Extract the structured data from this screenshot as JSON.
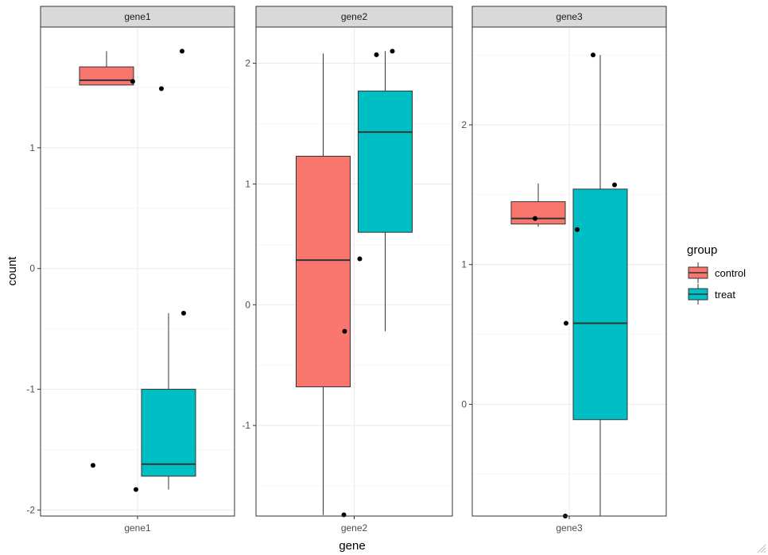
{
  "chart_data": {
    "type": "boxplot",
    "xlabel": "gene",
    "ylabel": "count",
    "facet_scales": "free_y",
    "grid": true,
    "legend": {
      "title": "group",
      "placement": "right",
      "entries": [
        {
          "name": "control",
          "color": "#F8766D"
        },
        {
          "name": "treat",
          "color": "#00BFC4"
        }
      ]
    },
    "panels": [
      {
        "title": "gene1",
        "category": "gene1",
        "ylim": [
          -2.05,
          2.0
        ],
        "yticks": [
          -2,
          -1,
          0,
          1
        ],
        "groups": [
          {
            "name": "control",
            "box": {
              "lower": 1.52,
              "q1": 1.52,
              "median": 1.56,
              "q3": 1.67,
              "upper": 1.8
            },
            "points": [
              {
                "dx": -0.06,
                "y": 1.55
              },
              {
                "dx": 0.3,
                "y": 1.49
              },
              {
                "dx": 0.56,
                "y": 1.8
              }
            ]
          },
          {
            "name": "treat",
            "box": {
              "lower": -1.83,
              "q1": -1.72,
              "median": -1.62,
              "q3": -1.0,
              "upper": -0.37
            },
            "points": [
              {
                "dx": -0.56,
                "y": -1.63
              },
              {
                "dx": -0.02,
                "y": -1.83
              },
              {
                "dx": 0.58,
                "y": -0.37
              }
            ]
          }
        ]
      },
      {
        "title": "gene2",
        "category": "gene2",
        "ylim": [
          -1.75,
          2.3
        ],
        "yticks": [
          -1,
          0,
          1,
          2
        ],
        "groups": [
          {
            "name": "control",
            "box": {
              "lower": -1.74,
              "q1": -0.68,
              "median": 0.37,
              "q3": 1.23,
              "upper": 2.08
            },
            "points": [
              {
                "dx": -0.12,
                "y": -0.22
              },
              {
                "dx": 0.28,
                "y": 2.07
              },
              {
                "dx": 0.48,
                "y": 2.1
              },
              {
                "dx": -0.13,
                "y": -1.74
              },
              {
                "dx": 0.07,
                "y": 0.38
              }
            ]
          },
          {
            "name": "treat",
            "box": {
              "lower": -0.22,
              "q1": 0.6,
              "median": 1.43,
              "q3": 1.77,
              "upper": 2.1
            },
            "points": []
          }
        ]
      },
      {
        "title": "gene3",
        "category": "gene3",
        "ylim": [
          -0.8,
          2.7
        ],
        "yticks": [
          0,
          1,
          2
        ],
        "groups": [
          {
            "name": "control",
            "box": {
              "lower": 1.27,
              "q1": 1.29,
              "median": 1.33,
              "q3": 1.45,
              "upper": 1.58
            },
            "points": [
              {
                "dx": -0.04,
                "y": 0.58
              },
              {
                "dx": 0.3,
                "y": 2.5
              },
              {
                "dx": 0.57,
                "y": 1.57
              }
            ]
          },
          {
            "name": "treat",
            "box": {
              "lower": -0.8,
              "q1": -0.11,
              "median": 0.58,
              "q3": 1.54,
              "upper": 2.5
            },
            "points": [
              {
                "dx": -0.43,
                "y": 1.33
              },
              {
                "dx": 0.1,
                "y": 1.25
              },
              {
                "dx": -0.05,
                "y": -0.8
              }
            ]
          }
        ]
      }
    ]
  }
}
